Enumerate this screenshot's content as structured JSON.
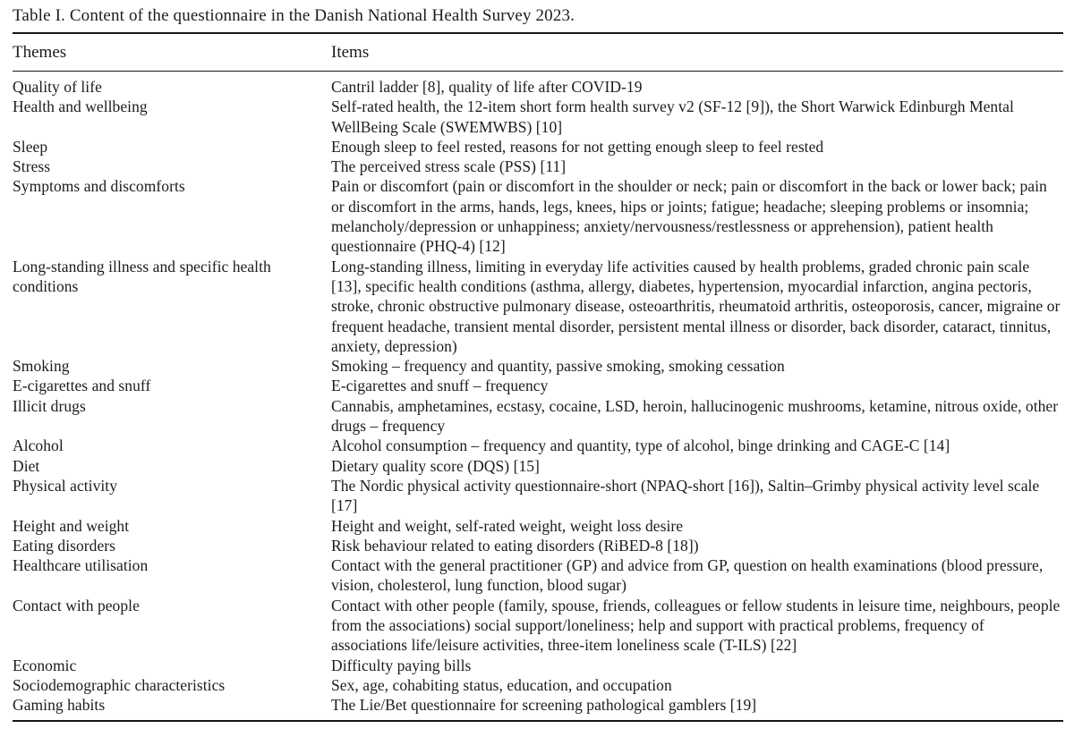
{
  "table": {
    "title": "Table I. Content of the questionnaire in the Danish National Health Survey 2023.",
    "columns": [
      "Themes",
      "Items"
    ],
    "rows": [
      {
        "theme": "Quality of life",
        "items": "Cantril ladder [8], quality of life after COVID-19"
      },
      {
        "theme": "Health and wellbeing",
        "items": "Self-rated health, the 12-item short form health survey v2 (SF-12 [9]), the Short Warwick Edinburgh Mental WellBeing Scale (SWEMWBS) [10]"
      },
      {
        "theme": "Sleep",
        "items": "Enough sleep to feel rested, reasons for not getting enough sleep to feel rested"
      },
      {
        "theme": "Stress",
        "items": "The perceived stress scale (PSS) [11]"
      },
      {
        "theme": "Symptoms and discomforts",
        "items": "Pain or discomfort (pain or discomfort in the shoulder or neck; pain or discomfort in the back or lower back; pain or discomfort in the arms, hands, legs, knees, hips or joints; fatigue; headache; sleeping problems or insomnia; melancholy/depression or unhappiness; anxiety/nervousness/restlessness or apprehension), patient health questionnaire (PHQ-4) [12]"
      },
      {
        "theme": "Long-standing illness and specific health conditions",
        "items": "Long-standing illness, limiting in everyday life activities caused by health problems, graded chronic pain scale [13], specific health conditions (asthma, allergy, diabetes, hypertension, myocardial infarction, angina pectoris, stroke, chronic obstructive pulmonary disease, osteoarthritis, rheumatoid arthritis, osteoporosis, cancer, migraine or frequent headache, transient mental disorder, persistent mental illness or disorder, back disorder, cataract, tinnitus, anxiety, depression)"
      },
      {
        "theme": "Smoking",
        "items": "Smoking – frequency and quantity, passive smoking, smoking cessation"
      },
      {
        "theme": "E-cigarettes and snuff",
        "items": "E-cigarettes and snuff – frequency"
      },
      {
        "theme": "Illicit drugs",
        "items": "Cannabis, amphetamines, ecstasy, cocaine, LSD, heroin, hallucinogenic mushrooms, ketamine, nitrous oxide, other drugs – frequency"
      },
      {
        "theme": "Alcohol",
        "items": "Alcohol consumption – frequency and quantity, type of alcohol, binge drinking and CAGE-C [14]"
      },
      {
        "theme": "Diet",
        "items": "Dietary quality score (DQS) [15]"
      },
      {
        "theme": "Physical activity",
        "items": "The Nordic physical activity questionnaire-short (NPAQ-short [16]), Saltin–Grimby physical activity level scale [17]"
      },
      {
        "theme": "Height and weight",
        "items": "Height and weight, self-rated weight, weight loss desire"
      },
      {
        "theme": "Eating disorders",
        "items": "Risk behaviour related to eating disorders (RiBED-8 [18])"
      },
      {
        "theme": "Healthcare utilisation",
        "items": "Contact with the general practitioner (GP) and advice from GP, question on health examinations (blood pressure, vision, cholesterol, lung function, blood sugar)"
      },
      {
        "theme": "Contact with people",
        "items": "Contact with other people (family, spouse, friends, colleagues or fellow students in leisure time, neighbours, people from the associations) social support/loneliness; help and support with practical problems, frequency of associations life/leisure activities, three-item loneliness scale (T-ILS) [22]"
      },
      {
        "theme": "Economic",
        "items": "Difficulty paying bills"
      },
      {
        "theme": "Sociodemographic characteristics",
        "items": "Sex, age, cohabiting status, education, and occupation"
      },
      {
        "theme": "Gaming habits",
        "items": "The Lie/Bet questionnaire for screening pathological gamblers [19]"
      }
    ]
  }
}
